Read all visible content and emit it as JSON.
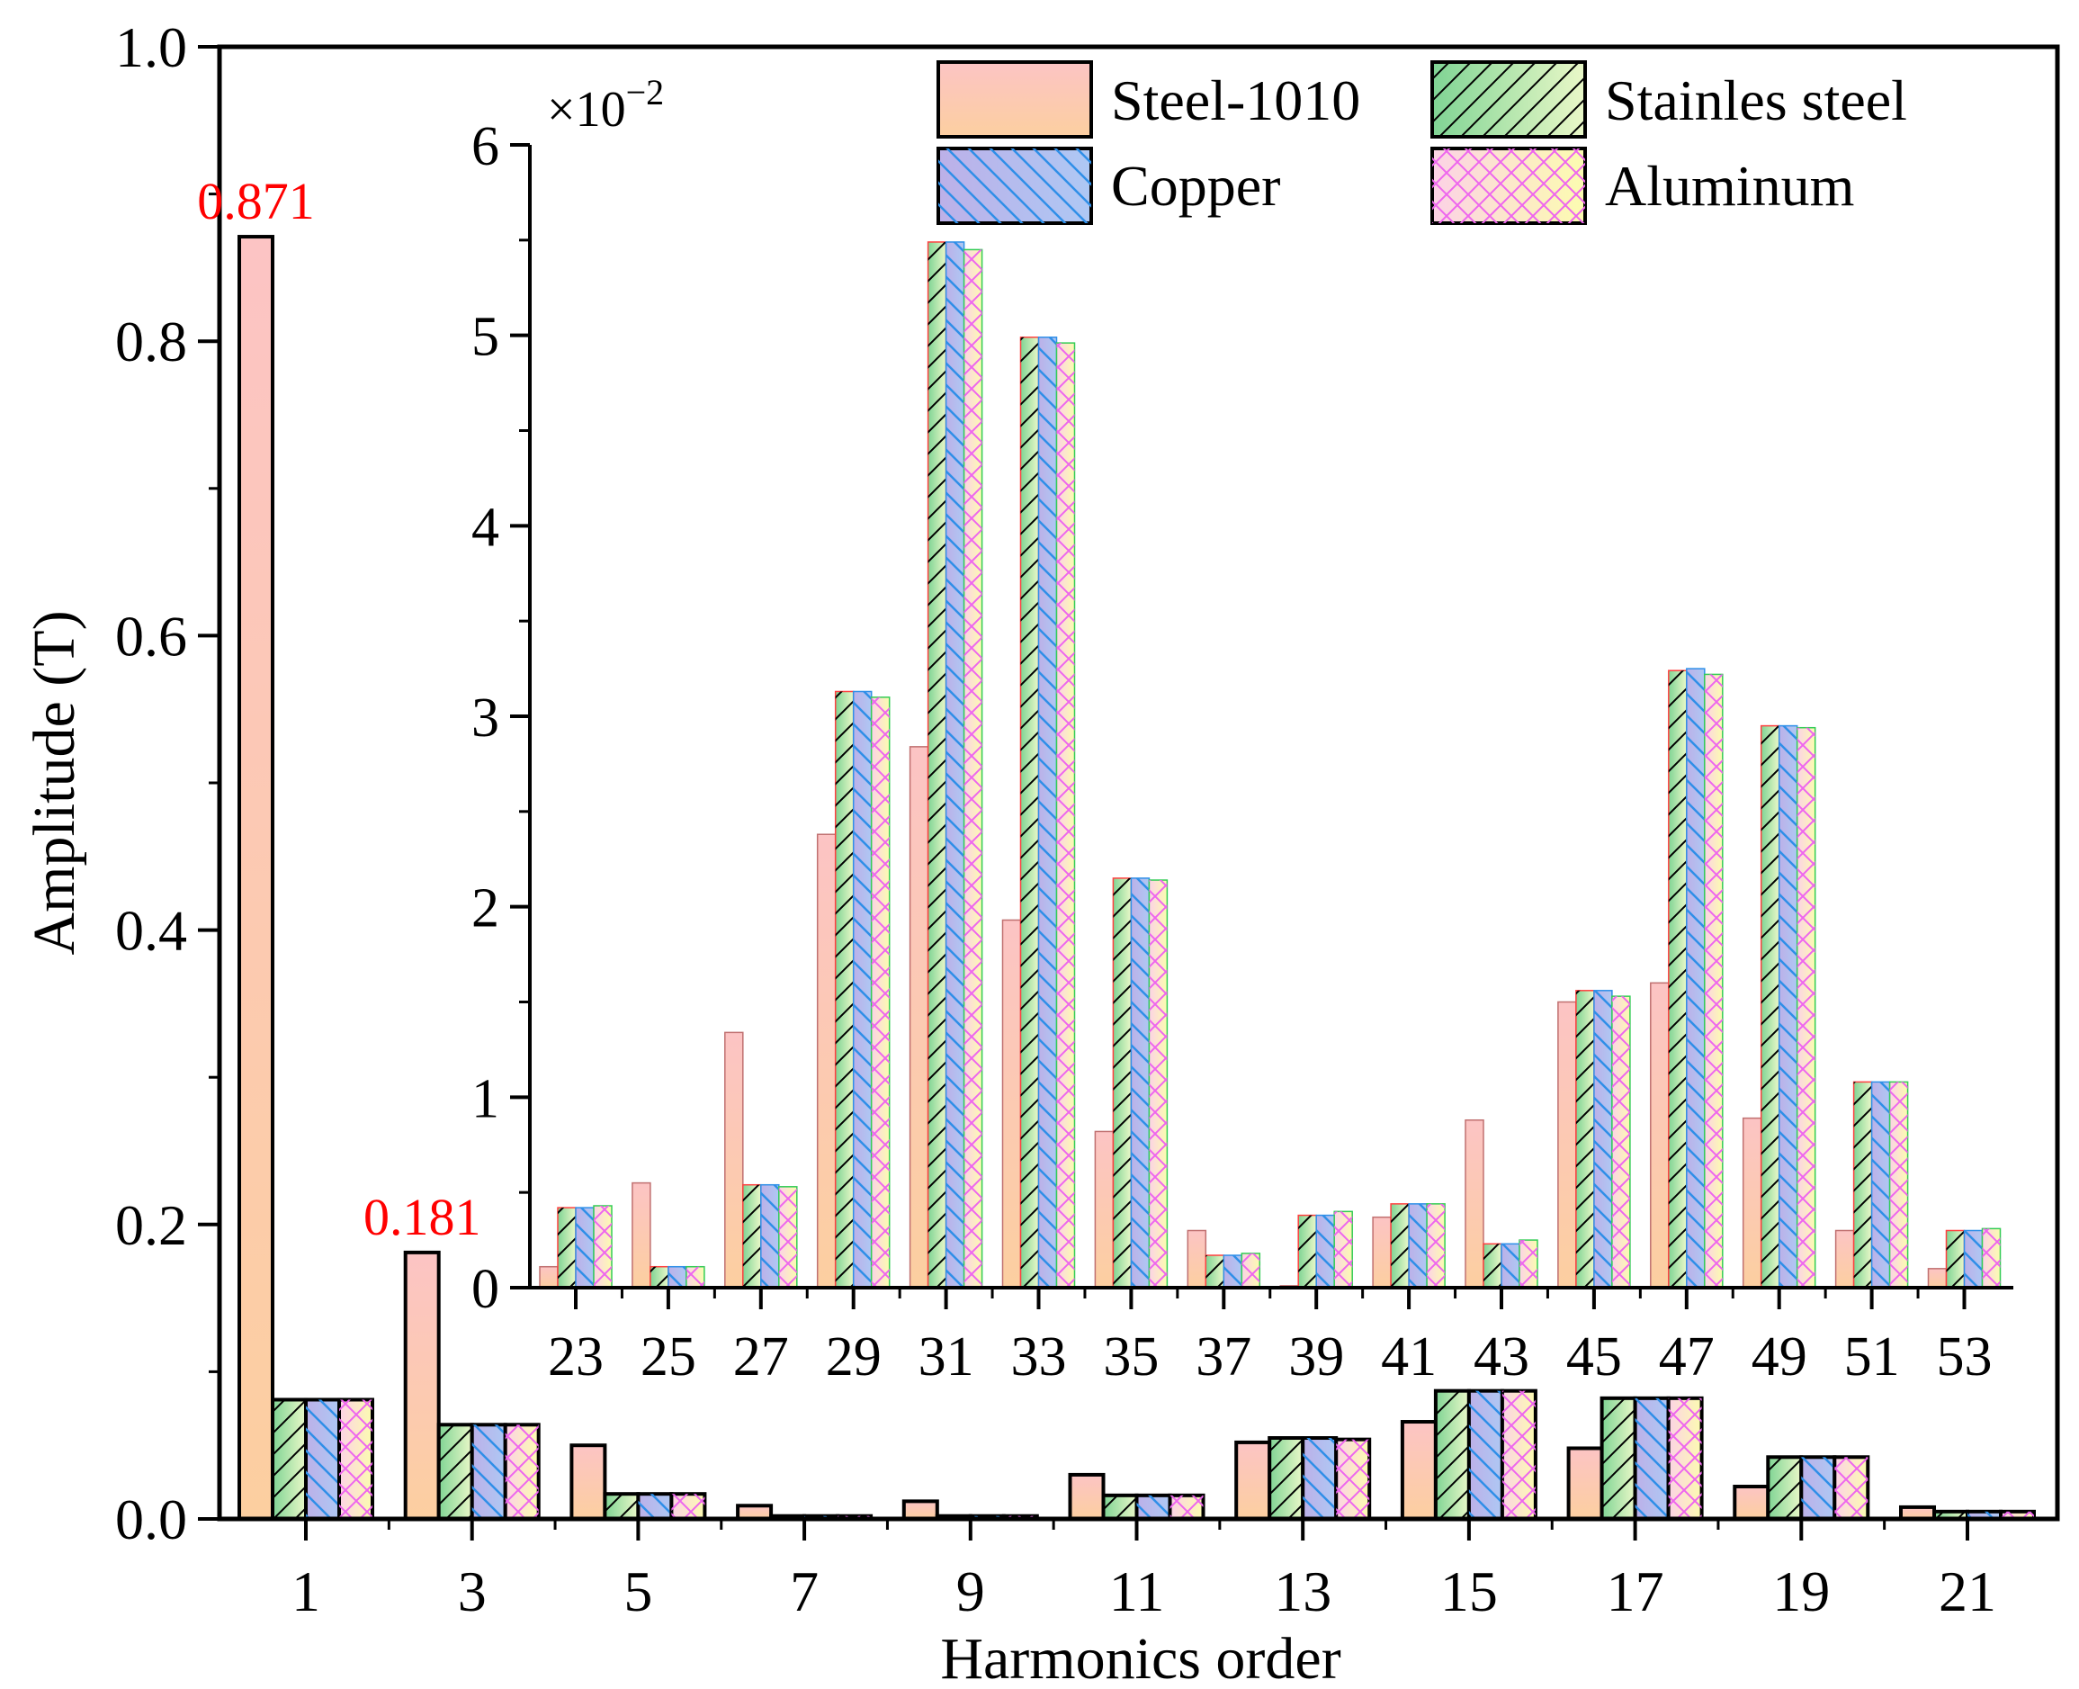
{
  "chart_data": {
    "type": "bar",
    "xlabel": "Harmonics order",
    "ylabel": "Amplitude (T)",
    "ylim": [
      0,
      1.0
    ],
    "yticks": [
      "0.0",
      "0.2",
      "0.4",
      "0.6",
      "0.8",
      "1.0"
    ],
    "categories": [
      "1",
      "3",
      "5",
      "7",
      "9",
      "11",
      "13",
      "15",
      "17",
      "19",
      "21"
    ],
    "series": [
      {
        "name": "Steel-1010",
        "values": [
          0.871,
          0.181,
          0.05,
          0.009,
          0.012,
          0.03,
          0.052,
          0.066,
          0.048,
          0.022,
          0.008
        ]
      },
      {
        "name": "Stainles steel",
        "values": [
          0.081,
          0.064,
          0.017,
          0.002,
          0.002,
          0.016,
          0.055,
          0.087,
          0.082,
          0.042,
          0.005
        ]
      },
      {
        "name": "Copper",
        "values": [
          0.081,
          0.064,
          0.017,
          0.002,
          0.002,
          0.016,
          0.055,
          0.087,
          0.082,
          0.042,
          0.005
        ]
      },
      {
        "name": "Aluminum",
        "values": [
          0.081,
          0.064,
          0.017,
          0.002,
          0.002,
          0.016,
          0.054,
          0.087,
          0.082,
          0.042,
          0.005
        ]
      }
    ],
    "annotations": [
      {
        "category": "1",
        "text": "0.871",
        "color": "#ff0000"
      },
      {
        "category": "3",
        "text": "0.181",
        "color": "#ff0000"
      }
    ],
    "legend": {
      "position": "top-right",
      "columns": 2
    },
    "inset": {
      "type": "bar",
      "ylim": [
        0,
        6
      ],
      "yticks": [
        "0",
        "1",
        "2",
        "3",
        "4",
        "5",
        "6"
      ],
      "scale_label_base": "×10",
      "scale_label_exp": "−2",
      "categories": [
        "23",
        "25",
        "27",
        "29",
        "31",
        "33",
        "35",
        "37",
        "39",
        "41",
        "43",
        "45",
        "47",
        "49",
        "51",
        "53"
      ],
      "series": [
        {
          "name": "Steel-1010",
          "values": [
            0.11,
            0.55,
            1.34,
            2.38,
            2.84,
            1.93,
            0.82,
            0.3,
            0.01,
            0.37,
            0.88,
            1.5,
            1.6,
            0.89,
            0.3,
            0.1
          ]
        },
        {
          "name": "Stainles steel",
          "values": [
            0.42,
            0.11,
            0.54,
            3.13,
            5.49,
            4.99,
            2.15,
            0.17,
            0.38,
            0.44,
            0.23,
            1.56,
            3.24,
            2.95,
            1.08,
            0.3
          ]
        },
        {
          "name": "Copper",
          "values": [
            0.42,
            0.11,
            0.54,
            3.13,
            5.49,
            4.99,
            2.15,
            0.17,
            0.38,
            0.44,
            0.23,
            1.56,
            3.25,
            2.95,
            1.08,
            0.3
          ]
        },
        {
          "name": "Aluminum",
          "values": [
            0.43,
            0.11,
            0.53,
            3.1,
            5.45,
            4.96,
            2.14,
            0.18,
            0.4,
            0.44,
            0.25,
            1.53,
            3.22,
            2.94,
            1.08,
            0.31
          ]
        }
      ]
    }
  }
}
